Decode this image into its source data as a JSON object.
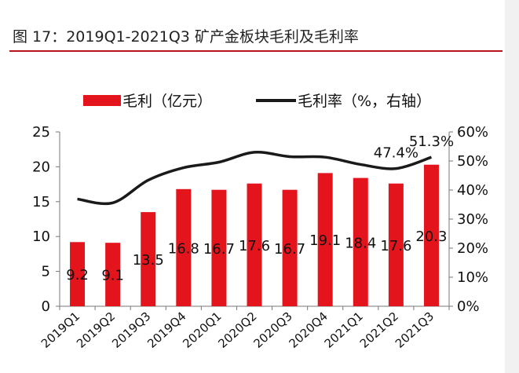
{
  "title": "图 17：2019Q1-2021Q3 矿产金板块毛利及毛利率",
  "chart_data": {
    "type": "bar",
    "categories": [
      "2019Q1",
      "2019Q2",
      "2019Q3",
      "2019Q4",
      "2020Q1",
      "2020Q2",
      "2020Q3",
      "2020Q4",
      "2021Q1",
      "2021Q2",
      "2021Q3"
    ],
    "series": [
      {
        "name": "毛利（亿元）",
        "type": "bar",
        "axis": "left",
        "values": [
          9.2,
          9.1,
          13.5,
          16.8,
          16.7,
          17.6,
          16.7,
          19.1,
          18.4,
          17.6,
          20.3
        ],
        "labels": [
          "9.2",
          "9.1",
          "13.5",
          "16.8",
          "16.7",
          "17.6",
          "16.7",
          "19.1",
          "18.4",
          "17.6",
          "20.3"
        ],
        "color": "#e3141c"
      },
      {
        "name": "毛利率（%，右轴）",
        "type": "line",
        "axis": "right",
        "values": [
          36.9,
          35.6,
          43.4,
          47.7,
          49.6,
          53.0,
          51.5,
          51.3,
          48.8,
          47.4,
          51.3
        ],
        "labels": [
          "",
          "",
          "",
          "",
          "",
          "",
          "",
          "",
          "",
          "47.4%",
          "51.3%"
        ],
        "color": "#1a1a1a"
      }
    ],
    "y_left": {
      "min": 0,
      "max": 25,
      "ticks": [
        "0",
        "5",
        "10",
        "15",
        "20",
        "25"
      ]
    },
    "y_right": {
      "min": 0,
      "max": 60,
      "ticks": [
        "0%",
        "10%",
        "20%",
        "30%",
        "40%",
        "50%",
        "60%"
      ]
    },
    "legend_position": "top-center",
    "grid": false
  }
}
